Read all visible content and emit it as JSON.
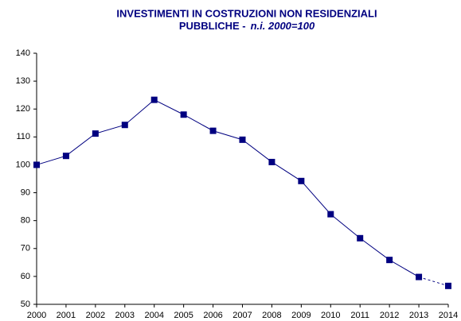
{
  "chart_data": {
    "type": "line",
    "title_lines": [
      "INVESTIMENTI IN COSTRUZIONI NON RESIDENZIALI",
      "PUBBLICHE -"
    ],
    "subtitle": "n.i. 2000=100",
    "categories": [
      "2000",
      "2001",
      "2002",
      "2003",
      "2004",
      "2005",
      "2006",
      "2007",
      "2008",
      "2009",
      "2010",
      "2011",
      "2012",
      "2013",
      "2014"
    ],
    "values": [
      100,
      103.2,
      111.2,
      114.3,
      123.3,
      118,
      112.2,
      109,
      101,
      94.2,
      82.3,
      73.7,
      65.9,
      59.8,
      56.6
    ],
    "color": "#000080",
    "dashed_last_segment": true,
    "ylim": [
      50,
      140
    ],
    "yticks": [
      50,
      60,
      70,
      80,
      90,
      100,
      110,
      120,
      130,
      140
    ],
    "grid": false
  }
}
